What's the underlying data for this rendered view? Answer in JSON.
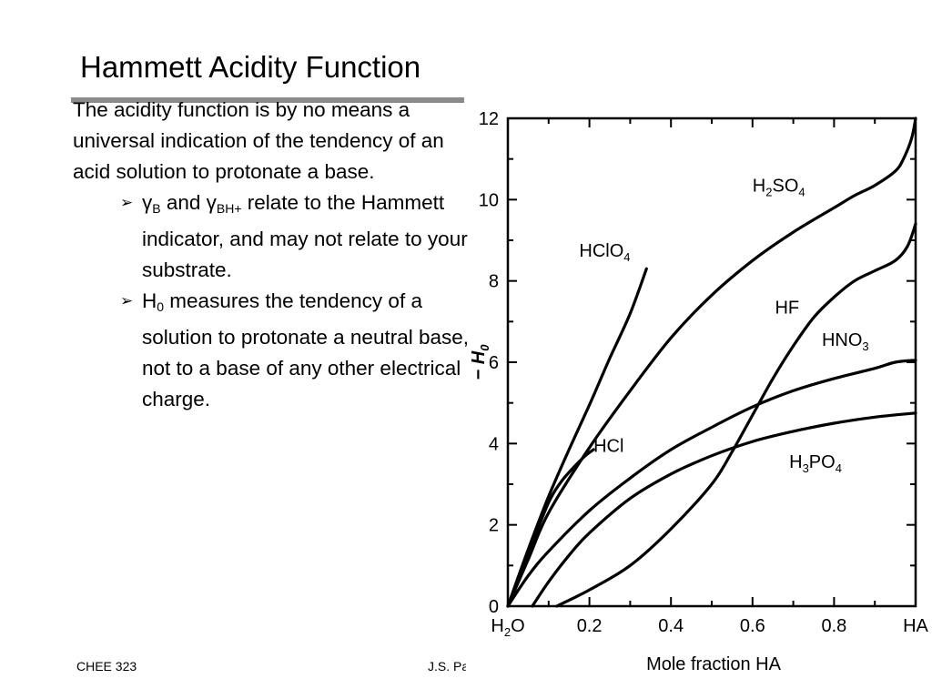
{
  "slide": {
    "title": "Hammett Acidity Function",
    "intro": "The acidity function is by no means a universal indication of the tendency of an acid solution to protonate a base.",
    "bullet1": {
      "gamma1": "γ",
      "sub1": "B",
      "mid": " and ",
      "gamma2": "γ",
      "sub2": "BH+",
      "rest": " relate to the Hammett indicator, and may not relate to your substrate."
    },
    "bullet2": {
      "h": "H",
      "sub": "0",
      "rest": " measures the tendency of a solution to protonate a neutral base, not to a base of any other electrical charge."
    },
    "bullet_marker": "➢",
    "footer_left": "CHEE 323",
    "footer_mid": "J.S. Parent"
  },
  "chart_data": {
    "type": "line",
    "xlabel": "Mole fraction HA",
    "ylabel": "− H",
    "ylabel_sub": "0",
    "xlim": [
      0,
      1
    ],
    "ylim": [
      0,
      12
    ],
    "x_ticks": [
      {
        "v": 0,
        "label": "H",
        "sub": "2",
        "label2": "O"
      },
      {
        "v": 0.2,
        "label": "0.2"
      },
      {
        "v": 0.4,
        "label": "0.4"
      },
      {
        "v": 0.6,
        "label": "0.6"
      },
      {
        "v": 0.8,
        "label": "0.8"
      },
      {
        "v": 1.0,
        "label": "HA"
      }
    ],
    "y_ticks": [
      {
        "v": 0,
        "label": "0"
      },
      {
        "v": 2,
        "label": "2"
      },
      {
        "v": 4,
        "label": "4"
      },
      {
        "v": 6,
        "label": "6"
      },
      {
        "v": 8,
        "label": "8"
      },
      {
        "v": 10,
        "label": "10"
      },
      {
        "v": 12,
        "label": "12"
      }
    ],
    "grid": false,
    "series": [
      {
        "name": "HClO4",
        "label_main": "HClO",
        "label_sub": "4",
        "label_at": [
          0.175,
          8.6
        ],
        "x": [
          0,
          0.05,
          0.1,
          0.15,
          0.2,
          0.25,
          0.3,
          0.34
        ],
        "y": [
          0,
          1.4,
          2.7,
          3.85,
          4.95,
          6.1,
          7.2,
          8.3
        ]
      },
      {
        "name": "HCl",
        "label_main": "HCl",
        "label_sub": "",
        "label_at": [
          0.21,
          3.8
        ],
        "x": [
          0,
          0.05,
          0.1,
          0.13,
          0.16,
          0.19,
          0.21
        ],
        "y": [
          0,
          1.3,
          2.55,
          3.05,
          3.4,
          3.7,
          3.85
        ]
      },
      {
        "name": "H2SO4",
        "label_main": "H",
        "label_sub": "2",
        "label_main2": "SO",
        "label_sub2": "4",
        "label_at": [
          0.6,
          10.2
        ],
        "x": [
          0,
          0.05,
          0.1,
          0.2,
          0.3,
          0.4,
          0.5,
          0.6,
          0.7,
          0.8,
          0.85,
          0.9,
          0.95,
          0.97,
          0.99,
          1.0
        ],
        "y": [
          0,
          1.15,
          2.3,
          3.9,
          5.3,
          6.6,
          7.65,
          8.5,
          9.2,
          9.8,
          10.1,
          10.35,
          10.7,
          11.0,
          11.5,
          12.0
        ]
      },
      {
        "name": "HF",
        "label_main": "HF",
        "label_sub": "",
        "label_at": [
          0.655,
          7.2
        ],
        "x": [
          0.12,
          0.2,
          0.3,
          0.4,
          0.5,
          0.55,
          0.6,
          0.65,
          0.7,
          0.75,
          0.8,
          0.85,
          0.9,
          0.95,
          0.98,
          1.0
        ],
        "y": [
          0,
          0.4,
          1.0,
          1.9,
          3.0,
          3.8,
          4.7,
          5.6,
          6.4,
          7.1,
          7.6,
          8.0,
          8.25,
          8.5,
          8.85,
          9.4
        ]
      },
      {
        "name": "HNO3",
        "label_main": "HNO",
        "label_sub": "3",
        "label_at": [
          0.77,
          6.4
        ],
        "x": [
          0,
          0.05,
          0.1,
          0.2,
          0.3,
          0.4,
          0.5,
          0.6,
          0.7,
          0.8,
          0.9,
          0.95,
          1.0
        ],
        "y": [
          0,
          0.75,
          1.35,
          2.35,
          3.15,
          3.85,
          4.4,
          4.9,
          5.3,
          5.6,
          5.85,
          6.0,
          6.05
        ]
      },
      {
        "name": "H3PO4",
        "label_main": "H",
        "label_sub": "3",
        "label_main2": "PO",
        "label_sub2": "4",
        "label_at": [
          0.69,
          3.4
        ],
        "x": [
          0.06,
          0.1,
          0.15,
          0.2,
          0.3,
          0.4,
          0.5,
          0.6,
          0.7,
          0.8,
          0.9,
          1.0
        ],
        "y": [
          0,
          0.6,
          1.25,
          1.8,
          2.65,
          3.25,
          3.7,
          4.05,
          4.3,
          4.5,
          4.65,
          4.75
        ]
      }
    ]
  }
}
